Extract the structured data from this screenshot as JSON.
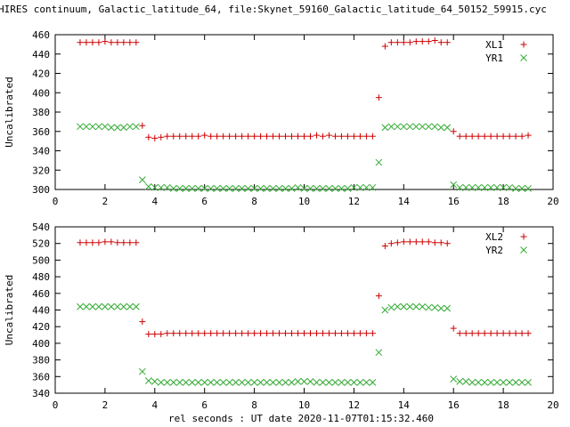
{
  "title": "HIRES continuum, Galactic_latitude_64, file:Skynet_59160_Galactic_latitude_64_50152_59915.cyc",
  "xlabel": "rel seconds : UT date 2020-11-07T01:15:32.460",
  "colors": {
    "series1": "#cc0000",
    "series2": "#33aa33"
  },
  "chart_data": [
    {
      "type": "scatter",
      "ylabel": "Uncalibrated",
      "xlim": [
        0,
        20
      ],
      "ylim": [
        300,
        460
      ],
      "xticks": [
        0,
        2,
        4,
        6,
        8,
        10,
        12,
        14,
        16,
        18,
        20
      ],
      "yticks": [
        300,
        320,
        340,
        360,
        380,
        400,
        420,
        440,
        460
      ],
      "legend_position": "top-right",
      "series": [
        {
          "name": "XL1",
          "marker": "plus",
          "x": [
            1.0,
            1.25,
            1.5,
            1.75,
            2.0,
            2.25,
            2.5,
            2.75,
            3.0,
            3.25,
            3.5,
            3.75,
            4.0,
            4.25,
            4.5,
            4.75,
            5.0,
            5.25,
            5.5,
            5.75,
            6.0,
            6.25,
            6.5,
            6.75,
            7.0,
            7.25,
            7.5,
            7.75,
            8.0,
            8.25,
            8.5,
            8.75,
            9.0,
            9.25,
            9.5,
            9.75,
            10.0,
            10.25,
            10.5,
            10.75,
            11.0,
            11.25,
            11.5,
            11.75,
            12.0,
            12.25,
            12.5,
            12.75,
            13.0,
            13.25,
            13.5,
            13.75,
            14.0,
            14.25,
            14.5,
            14.75,
            15.0,
            15.25,
            15.5,
            15.75,
            16.0,
            16.25,
            16.5,
            16.75,
            17.0,
            17.25,
            17.5,
            17.75,
            18.0,
            18.25,
            18.5,
            18.75,
            19.0
          ],
          "y": [
            452,
            452,
            452,
            452,
            453,
            452,
            452,
            452,
            452,
            452,
            366,
            354,
            353,
            354,
            355,
            355,
            355,
            355,
            355,
            355,
            356,
            355,
            355,
            355,
            355,
            355,
            355,
            355,
            355,
            355,
            355,
            355,
            355,
            355,
            355,
            355,
            355,
            355,
            356,
            355,
            356,
            355,
            355,
            355,
            355,
            355,
            355,
            355,
            395,
            448,
            452,
            452,
            452,
            452,
            453,
            453,
            453,
            454,
            452,
            452,
            360,
            355,
            355,
            355,
            355,
            355,
            355,
            355,
            355,
            355,
            355,
            355,
            356
          ]
        },
        {
          "name": "YR1",
          "marker": "cross",
          "x": [
            1.0,
            1.25,
            1.5,
            1.75,
            2.0,
            2.25,
            2.5,
            2.75,
            3.0,
            3.25,
            3.5,
            3.75,
            4.0,
            4.25,
            4.5,
            4.75,
            5.0,
            5.25,
            5.5,
            5.75,
            6.0,
            6.25,
            6.5,
            6.75,
            7.0,
            7.25,
            7.5,
            7.75,
            8.0,
            8.25,
            8.5,
            8.75,
            9.0,
            9.25,
            9.5,
            9.75,
            10.0,
            10.25,
            10.5,
            10.75,
            11.0,
            11.25,
            11.5,
            11.75,
            12.0,
            12.25,
            12.5,
            12.75,
            13.0,
            13.25,
            13.5,
            13.75,
            14.0,
            14.25,
            14.5,
            14.75,
            15.0,
            15.25,
            15.5,
            15.75,
            16.0,
            16.25,
            16.5,
            16.75,
            17.0,
            17.25,
            17.5,
            17.75,
            18.0,
            18.25,
            18.5,
            18.75,
            19.0
          ],
          "y": [
            365,
            365,
            365,
            365,
            365,
            364,
            364,
            364,
            365,
            365,
            310,
            303,
            302,
            302,
            302,
            301,
            301,
            301,
            301,
            301,
            301,
            301,
            301,
            301,
            301,
            301,
            301,
            301,
            301,
            301,
            301,
            301,
            301,
            301,
            301,
            302,
            301,
            301,
            301,
            301,
            301,
            301,
            301,
            301,
            302,
            302,
            302,
            302,
            328,
            364,
            365,
            365,
            365,
            365,
            365,
            365,
            365,
            365,
            364,
            364,
            305,
            302,
            302,
            302,
            302,
            302,
            302,
            302,
            302,
            302,
            301,
            301,
            301
          ]
        }
      ]
    },
    {
      "type": "scatter",
      "ylabel": "Uncalibrated",
      "xlim": [
        0,
        20
      ],
      "ylim": [
        340,
        540
      ],
      "xticks": [
        0,
        2,
        4,
        6,
        8,
        10,
        12,
        14,
        16,
        18,
        20
      ],
      "yticks": [
        340,
        360,
        380,
        400,
        420,
        440,
        460,
        480,
        500,
        520,
        540
      ],
      "legend_position": "top-right",
      "series": [
        {
          "name": "XL2",
          "marker": "plus",
          "x": [
            1.0,
            1.25,
            1.5,
            1.75,
            2.0,
            2.25,
            2.5,
            2.75,
            3.0,
            3.25,
            3.5,
            3.75,
            4.0,
            4.25,
            4.5,
            4.75,
            5.0,
            5.25,
            5.5,
            5.75,
            6.0,
            6.25,
            6.5,
            6.75,
            7.0,
            7.25,
            7.5,
            7.75,
            8.0,
            8.25,
            8.5,
            8.75,
            9.0,
            9.25,
            9.5,
            9.75,
            10.0,
            10.25,
            10.5,
            10.75,
            11.0,
            11.25,
            11.5,
            11.75,
            12.0,
            12.25,
            12.5,
            12.75,
            13.0,
            13.25,
            13.5,
            13.75,
            14.0,
            14.25,
            14.5,
            14.75,
            15.0,
            15.25,
            15.5,
            15.75,
            16.0,
            16.25,
            16.5,
            16.75,
            17.0,
            17.25,
            17.5,
            17.75,
            18.0,
            18.25,
            18.5,
            18.75,
            19.0
          ],
          "y": [
            521,
            521,
            521,
            521,
            522,
            522,
            521,
            521,
            521,
            521,
            426,
            411,
            411,
            411,
            412,
            412,
            412,
            412,
            412,
            412,
            412,
            412,
            412,
            412,
            412,
            412,
            412,
            412,
            412,
            412,
            412,
            412,
            412,
            412,
            412,
            412,
            412,
            412,
            412,
            412,
            412,
            412,
            412,
            412,
            412,
            412,
            412,
            412,
            457,
            517,
            520,
            521,
            522,
            522,
            522,
            522,
            522,
            521,
            521,
            520,
            418,
            412,
            412,
            412,
            412,
            412,
            412,
            412,
            412,
            412,
            412,
            412,
            412
          ]
        },
        {
          "name": "YR2",
          "marker": "cross",
          "x": [
            1.0,
            1.25,
            1.5,
            1.75,
            2.0,
            2.25,
            2.5,
            2.75,
            3.0,
            3.25,
            3.5,
            3.75,
            4.0,
            4.25,
            4.5,
            4.75,
            5.0,
            5.25,
            5.5,
            5.75,
            6.0,
            6.25,
            6.5,
            6.75,
            7.0,
            7.25,
            7.5,
            7.75,
            8.0,
            8.25,
            8.5,
            8.75,
            9.0,
            9.25,
            9.5,
            9.75,
            10.0,
            10.25,
            10.5,
            10.75,
            11.0,
            11.25,
            11.5,
            11.75,
            12.0,
            12.25,
            12.5,
            12.75,
            13.0,
            13.25,
            13.5,
            13.75,
            14.0,
            14.25,
            14.5,
            14.75,
            15.0,
            15.25,
            15.5,
            15.75,
            16.0,
            16.25,
            16.5,
            16.75,
            17.0,
            17.25,
            17.5,
            17.75,
            18.0,
            18.25,
            18.5,
            18.75,
            19.0
          ],
          "y": [
            444,
            444,
            444,
            444,
            444,
            444,
            444,
            444,
            444,
            444,
            366,
            355,
            354,
            353,
            353,
            353,
            353,
            353,
            353,
            353,
            353,
            353,
            353,
            353,
            353,
            353,
            353,
            353,
            353,
            353,
            353,
            353,
            353,
            353,
            353,
            354,
            354,
            354,
            353,
            353,
            353,
            353,
            353,
            353,
            353,
            353,
            353,
            353,
            389,
            440,
            443,
            444,
            444,
            444,
            444,
            444,
            443,
            443,
            442,
            442,
            357,
            354,
            354,
            353,
            353,
            353,
            353,
            353,
            353,
            353,
            353,
            353,
            353
          ]
        }
      ]
    }
  ]
}
